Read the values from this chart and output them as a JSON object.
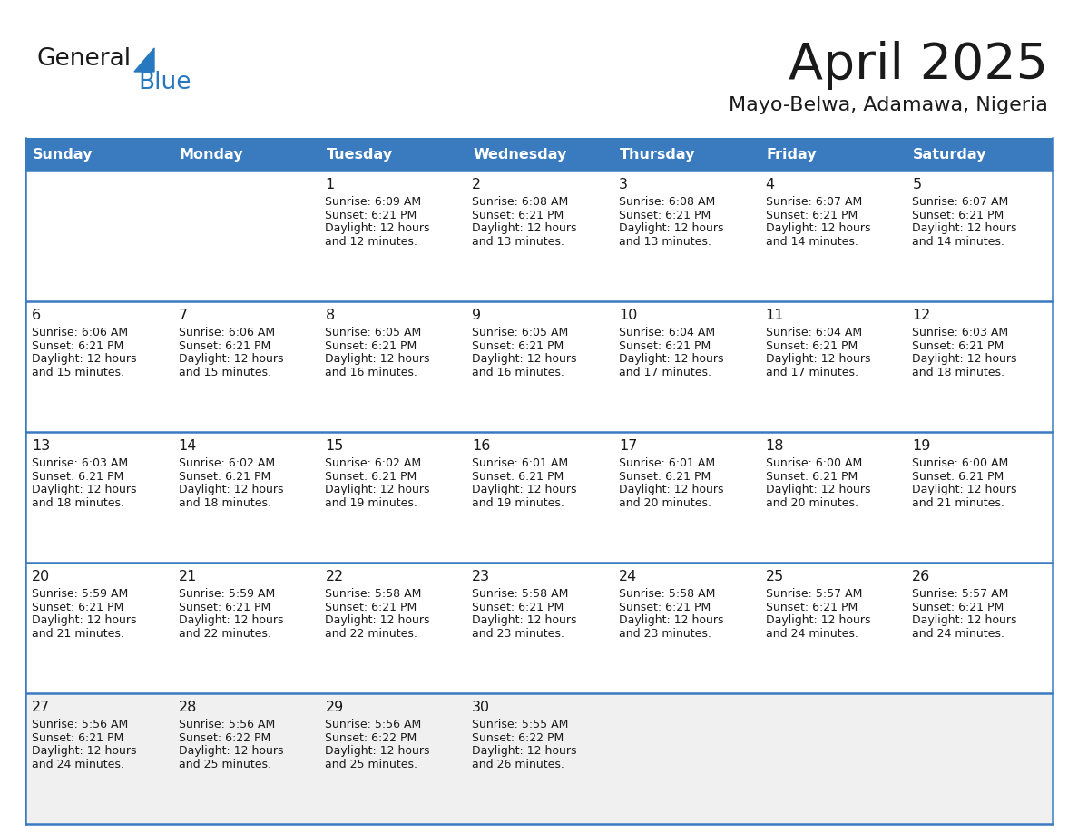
{
  "title": "April 2025",
  "subtitle": "Mayo-Belwa, Adamawa, Nigeria",
  "header_bg": "#3a7bbf",
  "header_text_color": "#ffffff",
  "cell_bg_white": "#ffffff",
  "cell_bg_gray": "#f0f0f0",
  "border_color": "#3a7bbf",
  "text_color": "#1a1a1a",
  "days_of_week": [
    "Sunday",
    "Monday",
    "Tuesday",
    "Wednesday",
    "Thursday",
    "Friday",
    "Saturday"
  ],
  "weeks": [
    [
      {
        "day": "",
        "sunrise": "",
        "sunset": "",
        "daylight": ""
      },
      {
        "day": "",
        "sunrise": "",
        "sunset": "",
        "daylight": ""
      },
      {
        "day": "1",
        "sunrise": "Sunrise: 6:09 AM",
        "sunset": "Sunset: 6:21 PM",
        "daylight": "Daylight: 12 hours\nand 12 minutes."
      },
      {
        "day": "2",
        "sunrise": "Sunrise: 6:08 AM",
        "sunset": "Sunset: 6:21 PM",
        "daylight": "Daylight: 12 hours\nand 13 minutes."
      },
      {
        "day": "3",
        "sunrise": "Sunrise: 6:08 AM",
        "sunset": "Sunset: 6:21 PM",
        "daylight": "Daylight: 12 hours\nand 13 minutes."
      },
      {
        "day": "4",
        "sunrise": "Sunrise: 6:07 AM",
        "sunset": "Sunset: 6:21 PM",
        "daylight": "Daylight: 12 hours\nand 14 minutes."
      },
      {
        "day": "5",
        "sunrise": "Sunrise: 6:07 AM",
        "sunset": "Sunset: 6:21 PM",
        "daylight": "Daylight: 12 hours\nand 14 minutes."
      }
    ],
    [
      {
        "day": "6",
        "sunrise": "Sunrise: 6:06 AM",
        "sunset": "Sunset: 6:21 PM",
        "daylight": "Daylight: 12 hours\nand 15 minutes."
      },
      {
        "day": "7",
        "sunrise": "Sunrise: 6:06 AM",
        "sunset": "Sunset: 6:21 PM",
        "daylight": "Daylight: 12 hours\nand 15 minutes."
      },
      {
        "day": "8",
        "sunrise": "Sunrise: 6:05 AM",
        "sunset": "Sunset: 6:21 PM",
        "daylight": "Daylight: 12 hours\nand 16 minutes."
      },
      {
        "day": "9",
        "sunrise": "Sunrise: 6:05 AM",
        "sunset": "Sunset: 6:21 PM",
        "daylight": "Daylight: 12 hours\nand 16 minutes."
      },
      {
        "day": "10",
        "sunrise": "Sunrise: 6:04 AM",
        "sunset": "Sunset: 6:21 PM",
        "daylight": "Daylight: 12 hours\nand 17 minutes."
      },
      {
        "day": "11",
        "sunrise": "Sunrise: 6:04 AM",
        "sunset": "Sunset: 6:21 PM",
        "daylight": "Daylight: 12 hours\nand 17 minutes."
      },
      {
        "day": "12",
        "sunrise": "Sunrise: 6:03 AM",
        "sunset": "Sunset: 6:21 PM",
        "daylight": "Daylight: 12 hours\nand 18 minutes."
      }
    ],
    [
      {
        "day": "13",
        "sunrise": "Sunrise: 6:03 AM",
        "sunset": "Sunset: 6:21 PM",
        "daylight": "Daylight: 12 hours\nand 18 minutes."
      },
      {
        "day": "14",
        "sunrise": "Sunrise: 6:02 AM",
        "sunset": "Sunset: 6:21 PM",
        "daylight": "Daylight: 12 hours\nand 18 minutes."
      },
      {
        "day": "15",
        "sunrise": "Sunrise: 6:02 AM",
        "sunset": "Sunset: 6:21 PM",
        "daylight": "Daylight: 12 hours\nand 19 minutes."
      },
      {
        "day": "16",
        "sunrise": "Sunrise: 6:01 AM",
        "sunset": "Sunset: 6:21 PM",
        "daylight": "Daylight: 12 hours\nand 19 minutes."
      },
      {
        "day": "17",
        "sunrise": "Sunrise: 6:01 AM",
        "sunset": "Sunset: 6:21 PM",
        "daylight": "Daylight: 12 hours\nand 20 minutes."
      },
      {
        "day": "18",
        "sunrise": "Sunrise: 6:00 AM",
        "sunset": "Sunset: 6:21 PM",
        "daylight": "Daylight: 12 hours\nand 20 minutes."
      },
      {
        "day": "19",
        "sunrise": "Sunrise: 6:00 AM",
        "sunset": "Sunset: 6:21 PM",
        "daylight": "Daylight: 12 hours\nand 21 minutes."
      }
    ],
    [
      {
        "day": "20",
        "sunrise": "Sunrise: 5:59 AM",
        "sunset": "Sunset: 6:21 PM",
        "daylight": "Daylight: 12 hours\nand 21 minutes."
      },
      {
        "day": "21",
        "sunrise": "Sunrise: 5:59 AM",
        "sunset": "Sunset: 6:21 PM",
        "daylight": "Daylight: 12 hours\nand 22 minutes."
      },
      {
        "day": "22",
        "sunrise": "Sunrise: 5:58 AM",
        "sunset": "Sunset: 6:21 PM",
        "daylight": "Daylight: 12 hours\nand 22 minutes."
      },
      {
        "day": "23",
        "sunrise": "Sunrise: 5:58 AM",
        "sunset": "Sunset: 6:21 PM",
        "daylight": "Daylight: 12 hours\nand 23 minutes."
      },
      {
        "day": "24",
        "sunrise": "Sunrise: 5:58 AM",
        "sunset": "Sunset: 6:21 PM",
        "daylight": "Daylight: 12 hours\nand 23 minutes."
      },
      {
        "day": "25",
        "sunrise": "Sunrise: 5:57 AM",
        "sunset": "Sunset: 6:21 PM",
        "daylight": "Daylight: 12 hours\nand 24 minutes."
      },
      {
        "day": "26",
        "sunrise": "Sunrise: 5:57 AM",
        "sunset": "Sunset: 6:21 PM",
        "daylight": "Daylight: 12 hours\nand 24 minutes."
      }
    ],
    [
      {
        "day": "27",
        "sunrise": "Sunrise: 5:56 AM",
        "sunset": "Sunset: 6:21 PM",
        "daylight": "Daylight: 12 hours\nand 24 minutes."
      },
      {
        "day": "28",
        "sunrise": "Sunrise: 5:56 AM",
        "sunset": "Sunset: 6:22 PM",
        "daylight": "Daylight: 12 hours\nand 25 minutes."
      },
      {
        "day": "29",
        "sunrise": "Sunrise: 5:56 AM",
        "sunset": "Sunset: 6:22 PM",
        "daylight": "Daylight: 12 hours\nand 25 minutes."
      },
      {
        "day": "30",
        "sunrise": "Sunrise: 5:55 AM",
        "sunset": "Sunset: 6:22 PM",
        "daylight": "Daylight: 12 hours\nand 26 minutes."
      },
      {
        "day": "",
        "sunrise": "",
        "sunset": "",
        "daylight": ""
      },
      {
        "day": "",
        "sunrise": "",
        "sunset": "",
        "daylight": ""
      },
      {
        "day": "",
        "sunrise": "",
        "sunset": "",
        "daylight": ""
      }
    ]
  ],
  "logo_text_general": "General",
  "logo_text_blue": "Blue",
  "logo_color_general": "#1a1a1a",
  "logo_color_blue": "#2878c0",
  "logo_triangle_color": "#2878c0"
}
